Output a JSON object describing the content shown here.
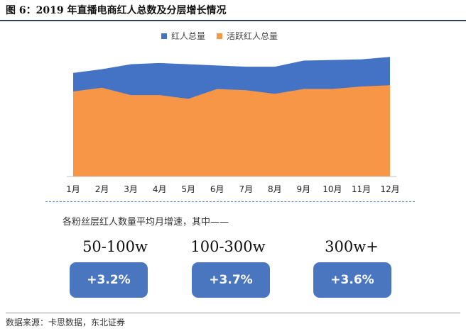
{
  "figure_title": "图 6：2019 年直播电商红人总数及分层增长情况",
  "chart_data": {
    "type": "area",
    "categories": [
      "1月",
      "2月",
      "3月",
      "4月",
      "5月",
      "6月",
      "7月",
      "8月",
      "9月",
      "10月",
      "11月",
      "12月"
    ],
    "ylim": [
      0,
      100
    ],
    "series": [
      {
        "name": "红人总量",
        "color": "#4472c4",
        "values": [
          84,
          87,
          91,
          92,
          91,
          90,
          89,
          89,
          94,
          94.5,
          95,
          97
        ]
      },
      {
        "name": "活跃红人总量",
        "color": "#f79646",
        "values": [
          69,
          72,
          66,
          66,
          63,
          71,
          70,
          67,
          71,
          71,
          73,
          74
        ]
      }
    ],
    "grid": false,
    "legend_position": "top"
  },
  "growth": {
    "note": "各粉丝层红人数量平均月增速，其中——",
    "tiers": [
      {
        "label": "50-100w",
        "value": "+3.2%"
      },
      {
        "label": "100-300w",
        "value": "+3.7%"
      },
      {
        "label": "300w+",
        "value": "+3.6%"
      }
    ],
    "badge_color": "#4a76bf"
  },
  "source": "数据来源：卡思数据，东北证券"
}
